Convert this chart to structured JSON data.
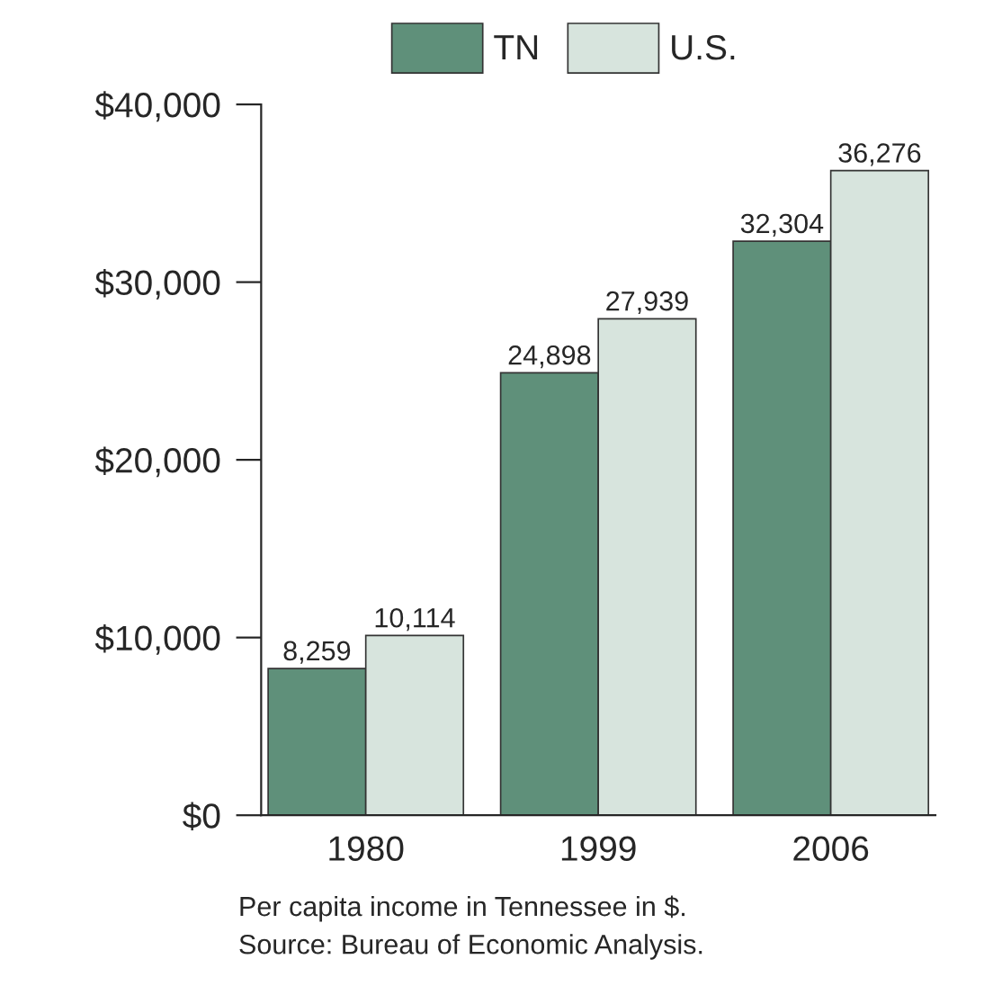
{
  "chart_data": {
    "type": "bar",
    "categories": [
      "1980",
      "1999",
      "2006"
    ],
    "series": [
      {
        "name": "TN",
        "color": "#5f907a",
        "values": [
          8259,
          24898,
          32304
        ],
        "value_labels": [
          "8,259",
          "24,898",
          "32,304"
        ]
      },
      {
        "name": "U.S.",
        "color": "#d7e4dd",
        "values": [
          10114,
          27939,
          36276
        ],
        "value_labels": [
          "10,114",
          "27,939",
          "36,276"
        ]
      }
    ],
    "ylim": [
      0,
      40000
    ],
    "yticks": [
      {
        "value": 0,
        "label": "$0"
      },
      {
        "value": 10000,
        "label": "$10,000"
      },
      {
        "value": 20000,
        "label": "$20,000"
      },
      {
        "value": 30000,
        "label": "$30,000"
      },
      {
        "value": 40000,
        "label": "$40,000"
      }
    ],
    "legend": "top",
    "grid": false,
    "annotations": [
      "Per capita income in Tennessee in $.",
      "Source: Bureau of Economic Analysis."
    ]
  }
}
